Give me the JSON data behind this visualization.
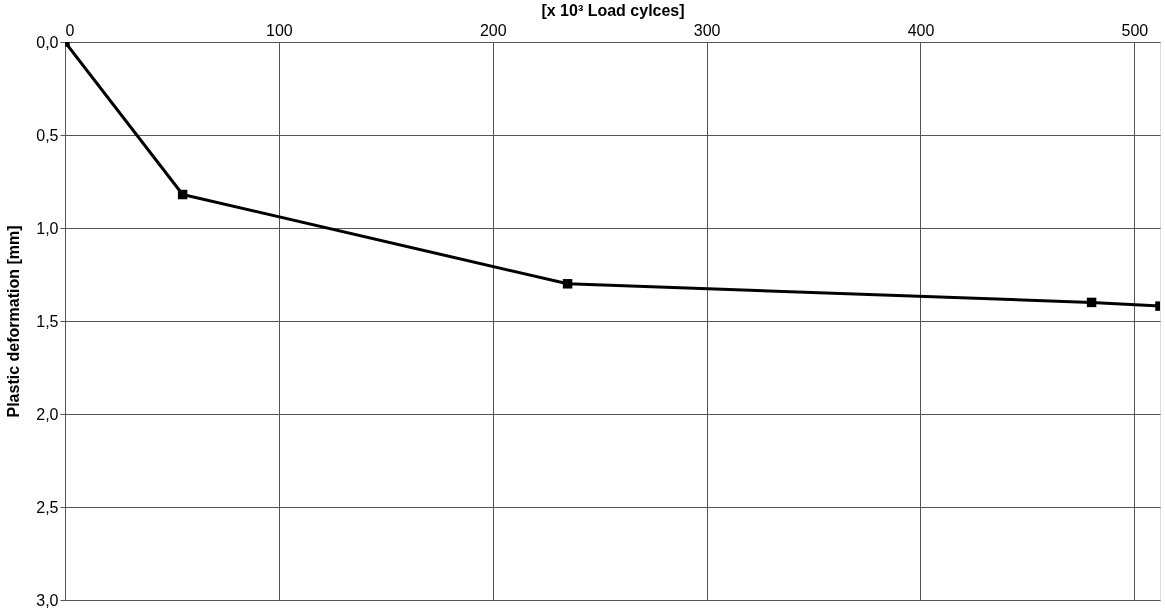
{
  "chart_data": {
    "type": "line",
    "xlabel": "[x 10³ Load cylces]",
    "ylabel": "Plastic deformation [mm]",
    "x": [
      0,
      55,
      235,
      480,
      512
    ],
    "series": [
      {
        "color": "#000000",
        "values": [
          0.0,
          0.82,
          1.3,
          1.4,
          1.42
        ]
      }
    ],
    "xlim": [
      0,
      512
    ],
    "xticks": [
      0,
      100,
      200,
      300,
      400,
      500
    ],
    "ylim": [
      3.0,
      0.0
    ],
    "yticks": [
      {
        "value": 0.0,
        "label": "0,0"
      },
      {
        "value": 0.5,
        "label": "0,5"
      },
      {
        "value": 1.0,
        "label": "1,0"
      },
      {
        "value": 1.5,
        "label": "1,5"
      },
      {
        "value": 2.0,
        "label": "2,0"
      },
      {
        "value": 2.5,
        "label": "2,5"
      },
      {
        "value": 3.0,
        "label": "3,0"
      }
    ],
    "grid": true,
    "marker": "square",
    "line_style": "solid"
  }
}
